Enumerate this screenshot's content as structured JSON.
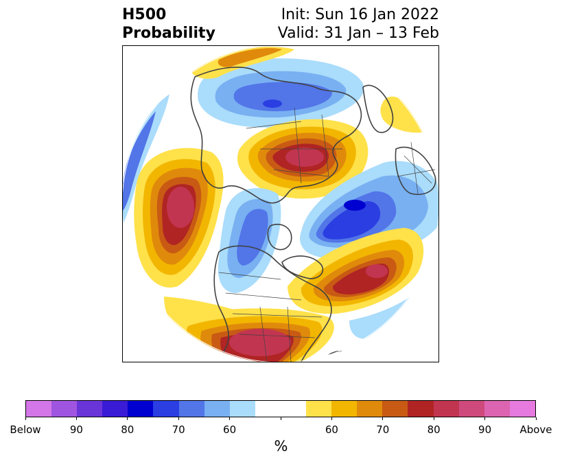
{
  "title": {
    "left_line1": "H500",
    "left_line2": "Probability",
    "right_line1": "Init: Sun 16 Jan 2022",
    "right_line2": "Valid: 31 Jan – 13 Feb"
  },
  "map": {
    "projection": "north-polar-stereographic",
    "land_outline_color": "#404040",
    "ocean_color": "#ffffff",
    "features": [
      "east-asia-below-anomaly",
      "europe-above-anomaly",
      "north-pacific-above-anomaly",
      "north-atlantic-below-anomaly",
      "arctic-below-anomaly",
      "north-atlantic-southern-above-anomaly",
      "contiguous-us-above-anomaly"
    ]
  },
  "colorbar": {
    "unit": "%",
    "colors": [
      "#d376e8",
      "#9f55e0",
      "#6a35d8",
      "#3a1bd6",
      "#0000d0",
      "#2a3ee2",
      "#5275e8",
      "#78b0f2",
      "#aadcfb",
      "#ffffff",
      "#ffffff",
      "#ffe14a",
      "#f2b600",
      "#e08a0c",
      "#c85a14",
      "#b02424",
      "#c23550",
      "#cf4a7c",
      "#dc64b0",
      "#e77ade"
    ],
    "ticks": [
      {
        "label": "Below",
        "index": 0
      },
      {
        "label": "90",
        "index": 2
      },
      {
        "label": "80",
        "index": 4
      },
      {
        "label": "70",
        "index": 6
      },
      {
        "label": "60",
        "index": 8
      },
      {
        "label": "",
        "index": 10
      },
      {
        "label": "60",
        "index": 12
      },
      {
        "label": "70",
        "index": 14
      },
      {
        "label": "80",
        "index": 16
      },
      {
        "label": "90",
        "index": 18
      },
      {
        "label": "Above",
        "index": 20
      }
    ]
  }
}
